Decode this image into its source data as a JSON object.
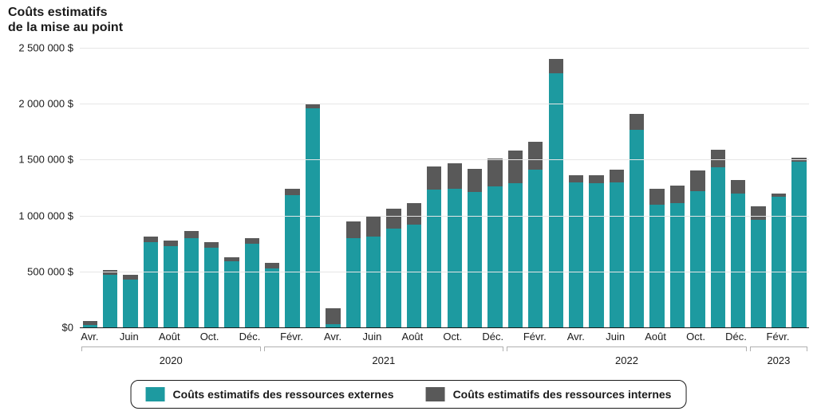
{
  "chart": {
    "type": "stacked-bar",
    "y_title": "Coûts estimatifs\nde la mise au point",
    "background_color": "#ffffff",
    "grid_color": "#e6e6e6",
    "axis_color": "#1a1a1a",
    "tick_font_size": 13,
    "title_font_size": 16,
    "y_axis": {
      "min": 0,
      "max": 2500000,
      "ticks": [
        {
          "v": 0,
          "label": "$0"
        },
        {
          "v": 500000,
          "label": "500 000 $"
        },
        {
          "v": 1000000,
          "label": "1 000 000 $"
        },
        {
          "v": 1500000,
          "label": "1 500 000 $"
        },
        {
          "v": 2000000,
          "label": "2 000 000 $"
        },
        {
          "v": 2500000,
          "label": "2 500 000 $"
        }
      ]
    },
    "series": {
      "external": {
        "label": "Coûts estimatifs des ressources externes",
        "color": "#1d9aa0"
      },
      "internal": {
        "label": "Coûts estimatifs des ressources internes",
        "color": "#595959"
      }
    },
    "months": [
      {
        "x": "Avr.",
        "year": 2020,
        "ext": 20000,
        "int": 40000
      },
      {
        "x": "",
        "year": 2020,
        "ext": 470000,
        "int": 40000
      },
      {
        "x": "Juin",
        "year": 2020,
        "ext": 430000,
        "int": 40000
      },
      {
        "x": "",
        "year": 2020,
        "ext": 760000,
        "int": 50000
      },
      {
        "x": "Août",
        "year": 2020,
        "ext": 730000,
        "int": 50000
      },
      {
        "x": "",
        "year": 2020,
        "ext": 800000,
        "int": 60000
      },
      {
        "x": "Oct.",
        "year": 2020,
        "ext": 710000,
        "int": 50000
      },
      {
        "x": "",
        "year": 2020,
        "ext": 590000,
        "int": 40000
      },
      {
        "x": "Déc.",
        "year": 2020,
        "ext": 750000,
        "int": 50000
      },
      {
        "x": "",
        "year": 2021,
        "ext": 530000,
        "int": 50000
      },
      {
        "x": "Févr.",
        "year": 2021,
        "ext": 1180000,
        "int": 60000
      },
      {
        "x": "",
        "year": 2021,
        "ext": 1960000,
        "int": 40000
      },
      {
        "x": "Avr.",
        "year": 2021,
        "ext": 30000,
        "int": 140000
      },
      {
        "x": "",
        "year": 2021,
        "ext": 800000,
        "int": 150000
      },
      {
        "x": "Juin",
        "year": 2021,
        "ext": 810000,
        "int": 180000
      },
      {
        "x": "",
        "year": 2021,
        "ext": 880000,
        "int": 180000
      },
      {
        "x": "Août",
        "year": 2021,
        "ext": 920000,
        "int": 190000
      },
      {
        "x": "",
        "year": 2021,
        "ext": 1230000,
        "int": 210000
      },
      {
        "x": "Oct.",
        "year": 2021,
        "ext": 1240000,
        "int": 230000
      },
      {
        "x": "",
        "year": 2021,
        "ext": 1210000,
        "int": 210000
      },
      {
        "x": "Déc.",
        "year": 2021,
        "ext": 1260000,
        "int": 250000
      },
      {
        "x": "",
        "year": 2022,
        "ext": 1290000,
        "int": 290000
      },
      {
        "x": "Févr.",
        "year": 2022,
        "ext": 1410000,
        "int": 250000
      },
      {
        "x": "",
        "year": 2022,
        "ext": 2270000,
        "int": 130000
      },
      {
        "x": "Avr.",
        "year": 2022,
        "ext": 1300000,
        "int": 60000
      },
      {
        "x": "",
        "year": 2022,
        "ext": 1290000,
        "int": 70000
      },
      {
        "x": "Juin",
        "year": 2022,
        "ext": 1300000,
        "int": 110000
      },
      {
        "x": "",
        "year": 2022,
        "ext": 1770000,
        "int": 140000
      },
      {
        "x": "Août",
        "year": 2022,
        "ext": 1100000,
        "int": 140000
      },
      {
        "x": "",
        "year": 2022,
        "ext": 1110000,
        "int": 160000
      },
      {
        "x": "Oct.",
        "year": 2022,
        "ext": 1220000,
        "int": 180000
      },
      {
        "x": "",
        "year": 2022,
        "ext": 1430000,
        "int": 160000
      },
      {
        "x": "Déc.",
        "year": 2022,
        "ext": 1200000,
        "int": 120000
      },
      {
        "x": "",
        "year": 2023,
        "ext": 960000,
        "int": 120000
      },
      {
        "x": "Févr.",
        "year": 2023,
        "ext": 1170000,
        "int": 30000
      },
      {
        "x": "",
        "year": 2023,
        "ext": 1480000,
        "int": 40000
      }
    ],
    "year_groups": [
      {
        "label": "2020",
        "start": 0,
        "end": 9
      },
      {
        "label": "2021",
        "start": 9,
        "end": 21
      },
      {
        "label": "2022",
        "start": 21,
        "end": 33
      },
      {
        "label": "2023",
        "start": 33,
        "end": 36
      }
    ]
  }
}
